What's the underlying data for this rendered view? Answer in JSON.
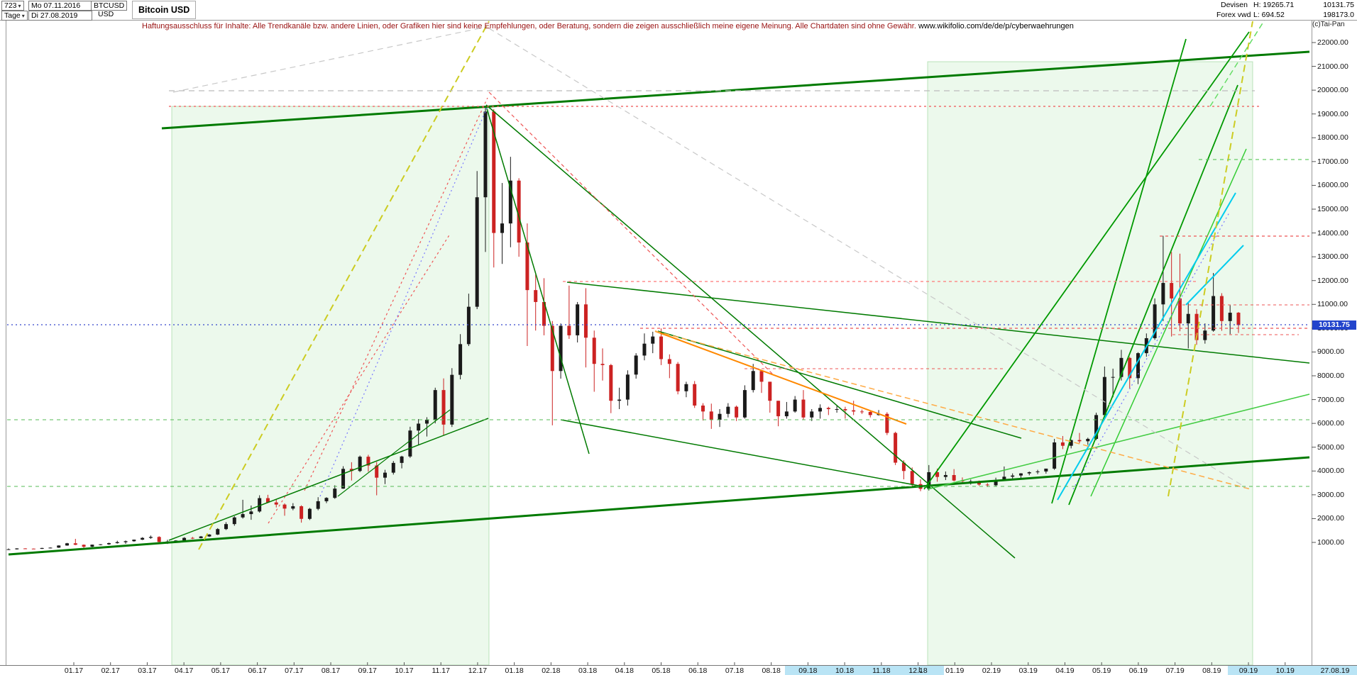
{
  "app": {
    "copyright": "(c)Tai-Pan"
  },
  "header": {
    "bars_count": "723",
    "timeframe": "Tage",
    "dropdown_arrow": "▾",
    "start_date": "Mo 07.11.2016",
    "end_date": "Di 27.08.2019",
    "symbol": "BTCUSD",
    "currency": "USD",
    "title": "Bitcoin USD",
    "market": "Devisen",
    "feed": "Forex vwd",
    "high_label": "H: 19265.71",
    "low_label": "L: 694.52",
    "last_price": "10131.75",
    "volume": "198173.0"
  },
  "disclaimer": {
    "text": "Haftungsausschluss für Inhalte: Alle Trendkanäle bzw. andere Linien, oder Grafiken hier sind keine Empfehlungen, oder Beratung, sondern die zeigen ausschließlich meine eigene Meinung. Alle Chartdaten sind ohne Gewähr.",
    "link": "www.wikifolio.com/de/de/p/cyberwaehrungen"
  },
  "price_axis": {
    "current": "10131.75",
    "current_value": 10131.75,
    "tag_color": "#2244cc"
  },
  "time_axis": {
    "last_date": "27.08.19",
    "low_marker": "L",
    "highlight_color": "#b9e4f5",
    "bands": [
      [
        1106,
        224
      ],
      [
        1730,
        182
      ]
    ]
  },
  "chart_data": {
    "type": "candlestick",
    "title": "Bitcoin USD",
    "symbol": "BTCUSD",
    "period": "Tage",
    "range": {
      "start": "07.11.2016",
      "end": "27.08.2019",
      "bars_shown": 723
    },
    "stats": {
      "high": 19265.71,
      "low": 694.52,
      "last": 10131.75,
      "volume": 198173.0
    },
    "y_axis": {
      "max_label": 22000,
      "min_label": 1000,
      "step": 1000
    },
    "y_tick_labels": [
      "22000.00",
      "21000.00",
      "20000.00",
      "19000.00",
      "18000.00",
      "17000.00",
      "16000.00",
      "15000.00",
      "14000.00",
      "13000.00",
      "12000.00",
      "11000.00",
      "10000.00",
      "9000.00",
      "8000.00",
      "7000.00",
      "6000.00",
      "5000.00",
      "4000.00",
      "3000.00",
      "2000.00",
      "1000.00"
    ],
    "x_tick_labels": [
      "01.17",
      "02.17",
      "03.17",
      "04.17",
      "05.17",
      "06.17",
      "07.17",
      "08.17",
      "09.17",
      "10.17",
      "11.17",
      "12.17",
      "01.18",
      "02.18",
      "03.18",
      "04.18",
      "05.18",
      "06.18",
      "07.18",
      "08.18",
      "09.18",
      "10.18",
      "11.18",
      "12.18",
      "01.19",
      "02.19",
      "03.19",
      "04.19",
      "05.19",
      "06.19",
      "07.19",
      "08.19",
      "09.19",
      "10.19"
    ],
    "up_color": "#1a1a1a",
    "down_color": "#cc2222",
    "candles": [
      [
        703,
        748,
        690,
        711
      ],
      [
        711,
        755,
        700,
        748
      ],
      [
        748,
        755,
        730,
        739
      ],
      [
        739,
        745,
        720,
        730
      ],
      [
        730,
        775,
        725,
        765
      ],
      [
        765,
        790,
        750,
        780
      ],
      [
        780,
        875,
        770,
        870
      ],
      [
        870,
        980,
        860,
        963
      ],
      [
        963,
        1150,
        885,
        900
      ],
      [
        900,
        915,
        750,
        820
      ],
      [
        820,
        910,
        800,
        905
      ],
      [
        905,
        924,
        880,
        920
      ],
      [
        920,
        990,
        900,
        970
      ],
      [
        970,
        1070,
        950,
        1010
      ],
      [
        1010,
        1080,
        940,
        1050
      ],
      [
        1050,
        1120,
        1030,
        1115
      ],
      [
        1115,
        1220,
        1100,
        1190
      ],
      [
        1190,
        1290,
        1150,
        1230
      ],
      [
        1230,
        1260,
        940,
        1020
      ],
      [
        1020,
        1110,
        935,
        1040
      ],
      [
        1040,
        1090,
        1000,
        1080
      ],
      [
        1080,
        1220,
        1060,
        1190
      ],
      [
        1190,
        1230,
        1140,
        1180
      ],
      [
        1180,
        1270,
        1170,
        1250
      ],
      [
        1250,
        1350,
        1230,
        1330
      ],
      [
        1330,
        1600,
        1310,
        1560
      ],
      [
        1560,
        1850,
        1520,
        1770
      ],
      [
        1770,
        2100,
        1700,
        2050
      ],
      [
        2050,
        2790,
        2000,
        2190
      ],
      [
        2190,
        2550,
        1950,
        2300
      ],
      [
        2300,
        2980,
        2250,
        2860
      ],
      [
        2860,
        3000,
        2650,
        2680
      ],
      [
        2680,
        2800,
        2470,
        2590
      ],
      [
        2590,
        2640,
        2120,
        2420
      ],
      [
        2420,
        2650,
        2350,
        2520
      ],
      [
        2520,
        2560,
        1830,
        1990
      ],
      [
        1990,
        2450,
        1940,
        2410
      ],
      [
        2410,
        2900,
        2350,
        2730
      ],
      [
        2730,
        2900,
        2650,
        2870
      ],
      [
        2870,
        3400,
        2830,
        3260
      ],
      [
        3260,
        4200,
        3250,
        4090
      ],
      [
        4090,
        4370,
        3600,
        4000
      ],
      [
        4000,
        4650,
        3950,
        4600
      ],
      [
        4600,
        4680,
        3970,
        4230
      ],
      [
        4230,
        4380,
        2980,
        3720
      ],
      [
        3720,
        4050,
        3450,
        3930
      ],
      [
        3930,
        4420,
        3850,
        4340
      ],
      [
        4340,
        4640,
        4110,
        4610
      ],
      [
        4610,
        5860,
        4550,
        5700
      ],
      [
        5700,
        6180,
        5110,
        5990
      ],
      [
        5990,
        6260,
        5450,
        6150
      ],
      [
        6150,
        7500,
        6000,
        7400
      ],
      [
        7400,
        7890,
        5510,
        5950
      ],
      [
        5950,
        8320,
        5850,
        8040
      ],
      [
        8040,
        9750,
        7850,
        9330
      ],
      [
        9330,
        11450,
        9250,
        10900
      ],
      [
        10900,
        16600,
        10800,
        15500
      ],
      [
        15500,
        19265,
        13200,
        19100
      ],
      [
        19100,
        19200,
        12550,
        14000
      ],
      [
        14000,
        16100,
        12700,
        14400
      ],
      [
        14400,
        17200,
        13400,
        16200
      ],
      [
        16200,
        16300,
        13000,
        13600
      ],
      [
        13600,
        14400,
        9250,
        11600
      ],
      [
        11600,
        12250,
        9900,
        11100
      ],
      [
        11100,
        12100,
        9700,
        10100
      ],
      [
        10100,
        10300,
        5920,
        8200
      ],
      [
        8200,
        10200,
        7880,
        10100
      ],
      [
        10100,
        11790,
        9550,
        9700
      ],
      [
        9700,
        11100,
        9400,
        11000
      ],
      [
        11000,
        11680,
        8350,
        9600
      ],
      [
        9600,
        9900,
        7330,
        8500
      ],
      [
        8500,
        9150,
        7800,
        8450
      ],
      [
        8450,
        8500,
        6430,
        6950
      ],
      [
        6950,
        7500,
        6600,
        7000
      ],
      [
        7000,
        8230,
        6750,
        8050
      ],
      [
        8050,
        8950,
        7880,
        8850
      ],
      [
        8850,
        9780,
        8650,
        9350
      ],
      [
        9350,
        9850,
        8950,
        9650
      ],
      [
        9650,
        9990,
        8450,
        8700
      ],
      [
        8700,
        8900,
        7900,
        8500
      ],
      [
        8500,
        8580,
        7220,
        7350
      ],
      [
        7350,
        7750,
        7100,
        7650
      ],
      [
        7650,
        7780,
        6650,
        6750
      ],
      [
        6750,
        6850,
        6120,
        6500
      ],
      [
        6500,
        6830,
        5770,
        6150
      ],
      [
        6150,
        6600,
        5850,
        6400
      ],
      [
        6400,
        6850,
        6250,
        6700
      ],
      [
        6700,
        6750,
        6100,
        6250
      ],
      [
        6250,
        7600,
        6200,
        7400
      ],
      [
        7400,
        8500,
        7300,
        8200
      ],
      [
        8200,
        8250,
        7280,
        7750
      ],
      [
        7750,
        7750,
        6450,
        6950
      ],
      [
        6950,
        6950,
        5880,
        6300
      ],
      [
        6300,
        6900,
        6200,
        6500
      ],
      [
        6500,
        7150,
        6450,
        7000
      ],
      [
        7000,
        7400,
        6150,
        6250
      ],
      [
        6250,
        6600,
        6100,
        6500
      ],
      [
        6500,
        6800,
        6200,
        6650
      ],
      [
        6650,
        6700,
        6350,
        6600
      ],
      [
        6600,
        6750,
        6450,
        6600
      ],
      [
        6600,
        6700,
        6200,
        6550
      ],
      [
        6550,
        6950,
        6350,
        6500
      ],
      [
        6500,
        6580,
        6400,
        6480
      ],
      [
        6480,
        6550,
        6250,
        6350
      ],
      [
        6350,
        6560,
        6330,
        6400
      ],
      [
        6400,
        6470,
        5510,
        5600
      ],
      [
        5600,
        5650,
        4250,
        4350
      ],
      [
        4350,
        4450,
        3650,
        4000
      ],
      [
        4000,
        4150,
        3360,
        3450
      ],
      [
        3450,
        3650,
        3150,
        3250
      ],
      [
        3250,
        4250,
        3180,
        3950
      ],
      [
        3950,
        4100,
        3550,
        3750
      ],
      [
        3750,
        3980,
        3620,
        3830
      ],
      [
        3830,
        4080,
        3560,
        3600
      ],
      [
        3600,
        3730,
        3480,
        3560
      ],
      [
        3560,
        3640,
        3430,
        3570
      ],
      [
        3570,
        3600,
        3380,
        3430
      ],
      [
        3430,
        3490,
        3330,
        3400
      ],
      [
        3400,
        3720,
        3340,
        3620
      ],
      [
        3620,
        4190,
        3590,
        3760
      ],
      [
        3760,
        3900,
        3670,
        3810
      ],
      [
        3810,
        3910,
        3660,
        3900
      ],
      [
        3900,
        3980,
        3820,
        3950
      ],
      [
        3950,
        4050,
        3870,
        3980
      ],
      [
        3980,
        4090,
        3890,
        4100
      ],
      [
        4100,
        5350,
        4050,
        5200
      ],
      [
        5200,
        5470,
        4920,
        5060
      ],
      [
        5060,
        5320,
        4950,
        5300
      ],
      [
        5300,
        5600,
        5170,
        5250
      ],
      [
        5250,
        5400,
        5100,
        5350
      ],
      [
        5350,
        6450,
        5300,
        6350
      ],
      [
        6350,
        8390,
        6150,
        7950
      ],
      [
        7950,
        8300,
        7100,
        7950
      ],
      [
        7950,
        9090,
        7800,
        8750
      ],
      [
        8750,
        8800,
        7460,
        7900
      ],
      [
        7900,
        8990,
        7650,
        8950
      ],
      [
        8950,
        9780,
        8800,
        9580
      ],
      [
        9580,
        11250,
        9510,
        11000
      ],
      [
        11000,
        13880,
        10300,
        11900
      ],
      [
        11900,
        13200,
        9650,
        11250
      ],
      [
        11250,
        13130,
        9870,
        10200
      ],
      [
        10200,
        11100,
        9150,
        10600
      ],
      [
        10600,
        10800,
        9300,
        9500
      ],
      [
        9500,
        10200,
        9350,
        9900
      ],
      [
        9900,
        12320,
        9850,
        11350
      ],
      [
        11350,
        11470,
        9890,
        10300
      ],
      [
        10300,
        10960,
        9750,
        10650
      ],
      [
        10650,
        10680,
        9800,
        10131.75
      ]
    ],
    "regions": [
      [
        242,
        150,
        447,
        788
      ],
      [
        1307,
        87,
        458,
        851
      ]
    ],
    "trendlines": [
      [
        228,
        181,
        1845,
        73,
        "#007a00",
        3,
        ""
      ],
      [
        12,
        782,
        1845,
        645,
        "#007a00",
        3,
        ""
      ],
      [
        685,
        148,
        1430,
        787,
        "#007a00",
        1.5,
        ""
      ],
      [
        799,
        398,
        1845,
        512,
        "#007a00",
        1.5,
        ""
      ],
      [
        685,
        150,
        830,
        640,
        "#007a00",
        1.5,
        ""
      ],
      [
        238,
        762,
        688,
        590,
        "#007a00",
        1.5,
        ""
      ],
      [
        476,
        700,
        634,
        578,
        "#007a00",
        1.2,
        ""
      ],
      [
        927,
        467,
        1439,
        618,
        "#007a00",
        1.5,
        ""
      ],
      [
        790,
        592,
        1311,
        688,
        "#007a00",
        1.5,
        ""
      ],
      [
        1482,
        710,
        1671,
        55,
        "#009900",
        1.8,
        ""
      ],
      [
        1506,
        712,
        1744,
        120,
        "#009900",
        1.8,
        ""
      ],
      [
        1302,
        690,
        1760,
        45,
        "#009900",
        1.8,
        ""
      ],
      [
        1537,
        700,
        1756,
        210,
        "#33cc33",
        1.5,
        ""
      ],
      [
        1307,
        690,
        1845,
        556,
        "#44cc44",
        1.5,
        ""
      ],
      [
        1490,
        705,
        1741,
        272,
        "#00ccee",
        2,
        ""
      ],
      [
        1671,
        430,
        1752,
        346,
        "#00ccee",
        2,
        ""
      ],
      [
        923,
        467,
        1277,
        598,
        "#ff8800",
        2,
        ""
      ],
      [
        280,
        775,
        689,
        30,
        "#cccc22",
        2,
        "10 6"
      ],
      [
        1646,
        700,
        1765,
        30,
        "#cccc22",
        2,
        "10 6"
      ],
      [
        1705,
        150,
        1782,
        28,
        "#66dd66",
        1.5,
        "8 5"
      ],
      [
        238,
        150,
        1774,
        150,
        "#ee5555",
        1.2,
        "3 4"
      ],
      [
        429,
        692,
        687,
        138,
        "#ee5555",
        1.2,
        "3 4"
      ],
      [
        378,
        738,
        634,
        330,
        "#ee5555",
        1.2,
        "3 4"
      ],
      [
        689,
        130,
        1091,
        530,
        "#ee5555",
        1.2,
        "5 4"
      ],
      [
        1634,
        333,
        1845,
        333,
        "#ee5555",
        1.2,
        "4 4"
      ],
      [
        793,
        397,
        1689,
        397,
        "#ff7777",
        1.2,
        "4 4"
      ],
      [
        902,
        463,
        1845,
        463,
        "#ee5555",
        1.2,
        "4 4"
      ],
      [
        1049,
        520,
        1415,
        520,
        "#ee5555",
        1,
        "4 4"
      ],
      [
        1658,
        430,
        1845,
        430,
        "#ee5555",
        1,
        "4 4"
      ],
      [
        1652,
        472,
        1830,
        472,
        "#ee5555",
        1,
        "4 4"
      ],
      [
        923,
        467,
        1762,
        690,
        "#ffaa44",
        1.5,
        "8 5"
      ],
      [
        10,
        592,
        1845,
        592,
        "#55bb55",
        1,
        "5 5"
      ],
      [
        10,
        686,
        1845,
        686,
        "#55bb55",
        1,
        "5 5"
      ],
      [
        1689,
        225,
        1845,
        225,
        "#66cc66",
        1.2,
        "5 5"
      ],
      [
        238,
        128,
        1768,
        128,
        "#bbbbbb",
        1.2,
        "8 6"
      ],
      [
        689,
        40,
        1756,
        688,
        "#c8c8c8",
        1.2,
        "8 6"
      ],
      [
        244,
        130,
        685,
        38,
        "#c8c8c8",
        1.2,
        "8 6"
      ],
      [
        10,
        458,
        1845,
        458,
        "#3344cc",
        1.2,
        "2 4"
      ],
      [
        451,
        700,
        687,
        150,
        "#7777ff",
        1.2,
        "2 4"
      ],
      [
        1512,
        690,
        1732,
        300,
        "#7777ff",
        1.2,
        "2 4"
      ]
    ]
  }
}
